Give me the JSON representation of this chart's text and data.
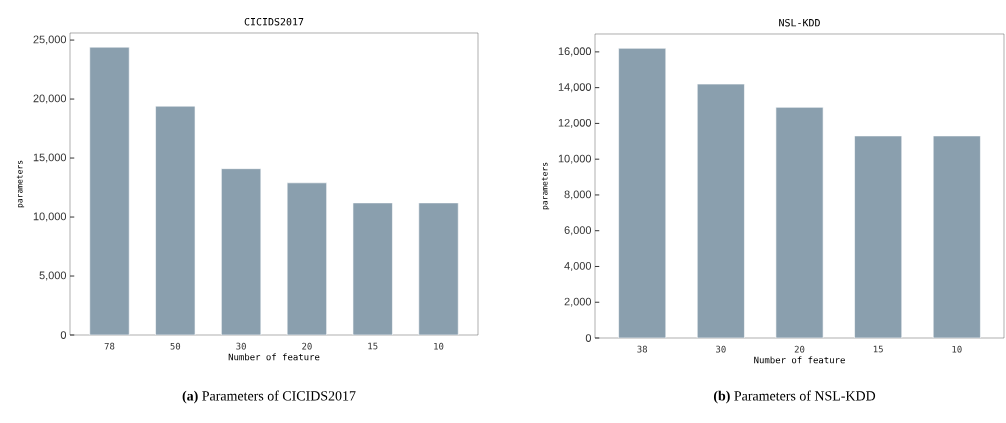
{
  "chart_data": [
    {
      "type": "bar",
      "title": "CICIDS2017",
      "xlabel": "Number of feature",
      "ylabel": "parameters",
      "categories": [
        "78",
        "50",
        "30",
        "20",
        "15",
        "10"
      ],
      "values": [
        24400,
        19400,
        14100,
        12900,
        11200,
        11200
      ],
      "color": "#8a9fae",
      "ylim": [
        0,
        25600
      ],
      "yticks": [
        0,
        {
          "value": 5000,
          "label": "5,000"
        },
        {
          "value": 10000,
          "label": "10,000"
        },
        {
          "value": 15000,
          "label": "15,000"
        },
        {
          "value": 20000,
          "label": "20,000"
        },
        {
          "value": 25000,
          "label": "25,000"
        }
      ],
      "annotations": [
        "**(a)** Parameters of CICIDS2017"
      ]
    },
    {
      "type": "bar",
      "title": "NSL-KDD",
      "xlabel": "Number of feature",
      "ylabel": "parameters",
      "categories": [
        "38",
        "30",
        "20",
        "15",
        "10"
      ],
      "values": [
        16200,
        14200,
        12900,
        11300,
        11300
      ],
      "color": "#8a9fae",
      "ylim": [
        0,
        17000
      ],
      "yticks": [
        0,
        {
          "value": 2000,
          "label": "2,000"
        },
        {
          "value": 4000,
          "label": "4,000"
        },
        {
          "value": 6000,
          "label": "6,000"
        },
        {
          "value": 8000,
          "label": "8,000"
        },
        {
          "value": 10000,
          "label": "10,000"
        },
        {
          "value": 12000,
          "label": "12,000"
        },
        {
          "value": 14000,
          "label": "14,000"
        },
        {
          "value": 16000,
          "label": "16,000"
        }
      ],
      "annotations": [
        "**(b)** Parameters of NSL-KDD"
      ]
    }
  ]
}
